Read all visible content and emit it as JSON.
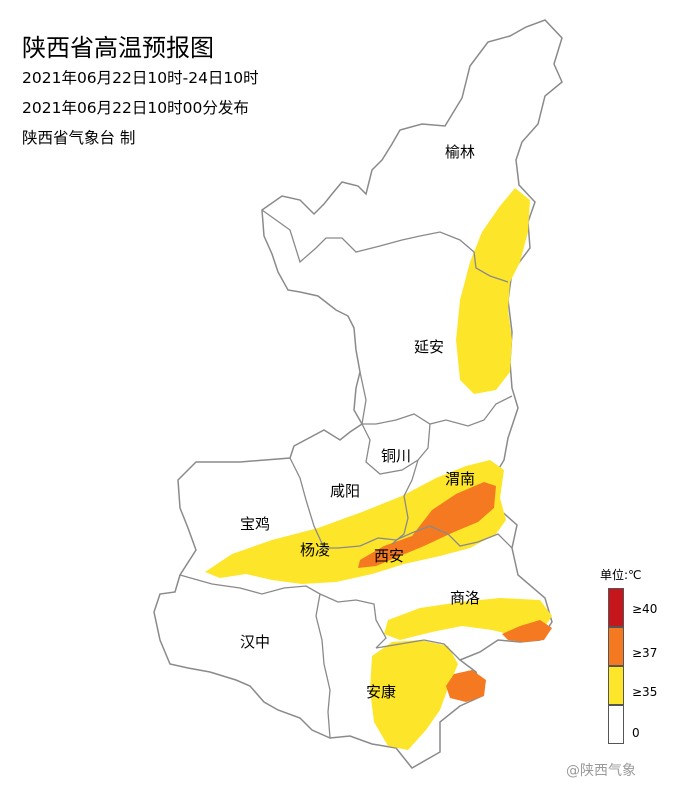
{
  "header": {
    "title": "陕西省高温预报图",
    "valid_period": "2021年06月22日10时-24日10时",
    "issued": "2021年06月22日10时00分发布",
    "producer": "陕西省气象台 制"
  },
  "cities": [
    {
      "id": "yulin",
      "name": "榆林"
    },
    {
      "id": "yanan",
      "name": "延安"
    },
    {
      "id": "tongchuan",
      "name": "铜川"
    },
    {
      "id": "xianyang",
      "name": "咸阳"
    },
    {
      "id": "weinan",
      "name": "渭南"
    },
    {
      "id": "baoji",
      "name": "宝鸡"
    },
    {
      "id": "yangling",
      "name": "杨凌"
    },
    {
      "id": "xian",
      "name": "西安"
    },
    {
      "id": "shangluo",
      "name": "商洛"
    },
    {
      "id": "hanzhong",
      "name": "汉中"
    },
    {
      "id": "ankang",
      "name": "安康"
    }
  ],
  "legend": {
    "unit": "单位:℃",
    "items": [
      {
        "label": "≥40",
        "color": "#c4161c"
      },
      {
        "label": "≥37",
        "color": "#f47920"
      },
      {
        "label": "≥35",
        "color": "#fde52a"
      },
      {
        "label": "0",
        "color": "#ffffff"
      }
    ]
  },
  "colors": {
    "boundary": "#8a8a8a",
    "yellow": "#fde52a",
    "orange": "#f47920"
  },
  "watermark": "@陕西气象"
}
